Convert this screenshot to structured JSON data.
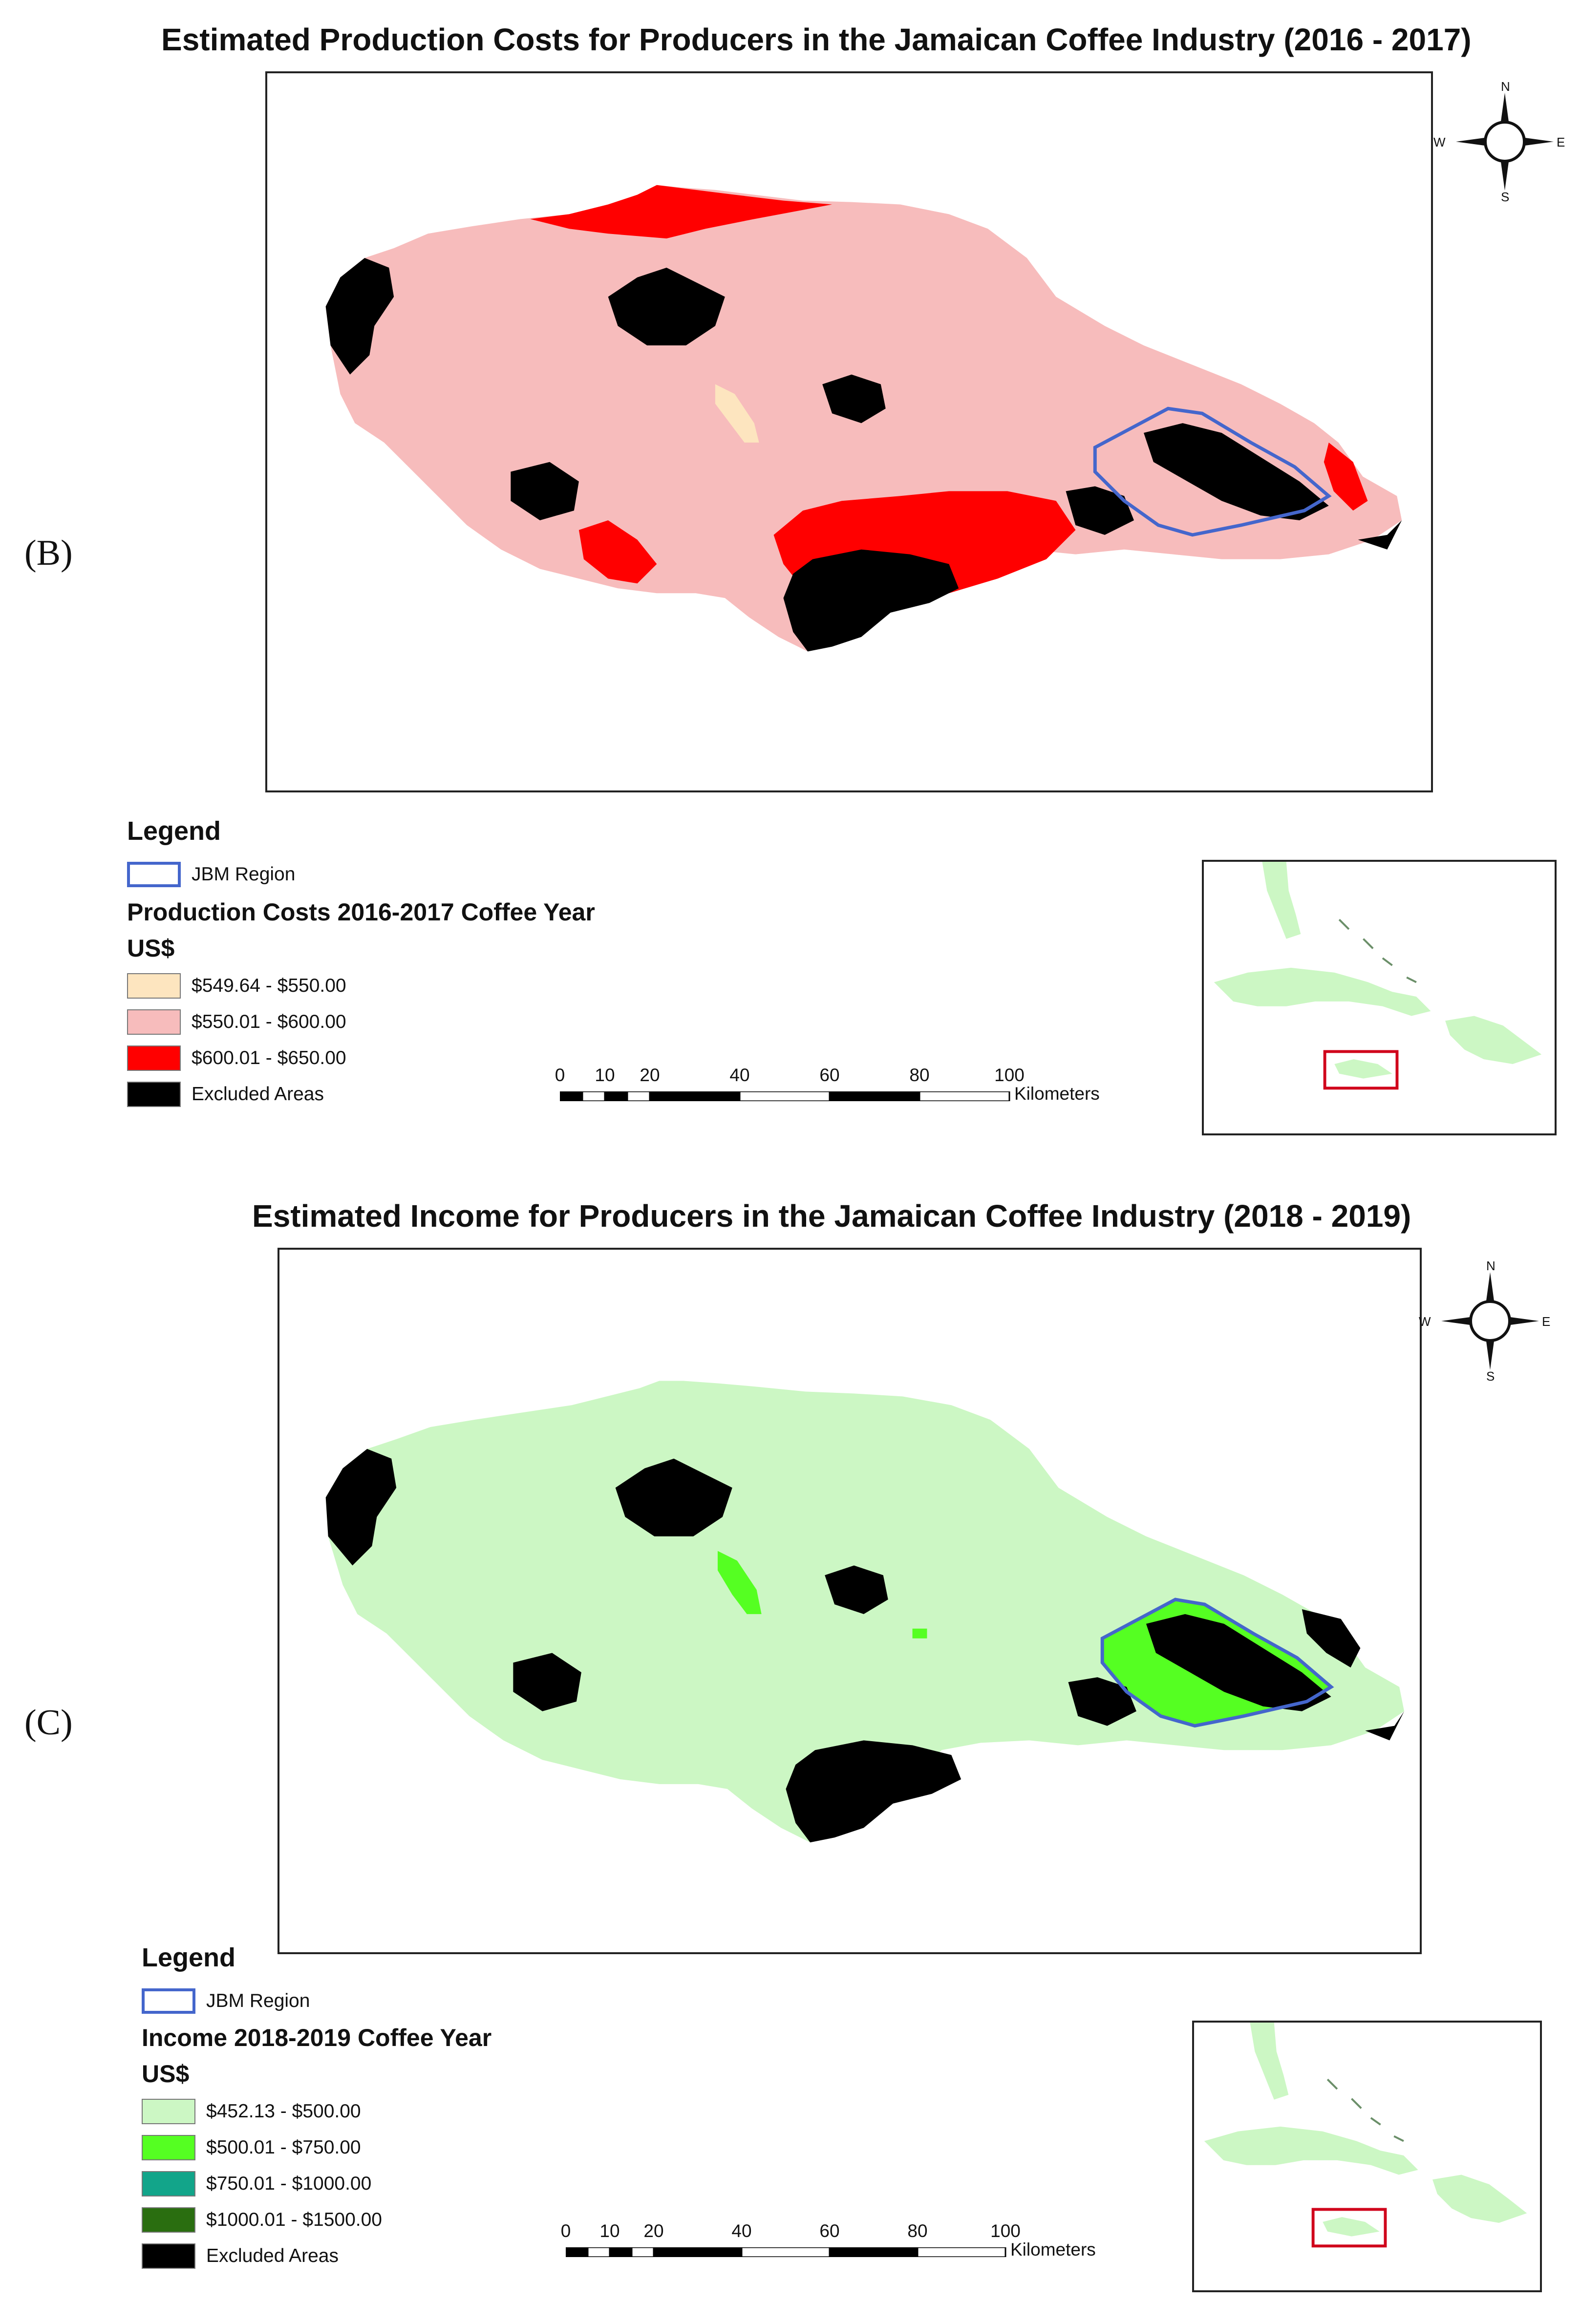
{
  "panel_b": {
    "label": "(B)",
    "title": "Estimated Production Costs for Producers in the Jamaican Coffee Industry (2016 - 2017)",
    "legend": {
      "title": "Legend",
      "region_label": "JBM Region",
      "heading": "Production Costs 2016-2017 Coffee Year",
      "unit": "US$",
      "classes": [
        {
          "label": "$549.64 - $550.00",
          "color": "#fde5bf"
        },
        {
          "label": "$550.01 - $600.00",
          "color": "#f7bcbc"
        },
        {
          "label": "$600.01 - $650.00",
          "color": "#ff0000"
        },
        {
          "label": "Excluded Areas",
          "color": "#000000"
        }
      ]
    },
    "region_color": "#4466cc",
    "base_color": "#f7bcbc",
    "high_color": "#ff0000",
    "low_color": "#fde5bf"
  },
  "panel_c": {
    "label": "(C)",
    "title": "Estimated Income for Producers in the Jamaican Coffee Industry (2018 - 2019)",
    "legend": {
      "title": "Legend",
      "region_label": "JBM Region",
      "heading": "Income 2018-2019 Coffee Year",
      "unit": "US$",
      "classes": [
        {
          "label": "$452.13 - $500.00",
          "color": "#ccf7c4"
        },
        {
          "label": "$500.01 - $750.00",
          "color": "#55ff22"
        },
        {
          "label": "$750.01 - $1000.00",
          "color": "#12a58a"
        },
        {
          "label": "$1000.01 - $1500.00",
          "color": "#2a6e10"
        },
        {
          "label": "Excluded Areas",
          "color": "#000000"
        }
      ]
    },
    "region_color": "#4466cc",
    "base_color": "#ccf7c4",
    "high_color": "#55ff22"
  },
  "scale": {
    "ticks": [
      "0",
      "10",
      "20",
      "40",
      "60",
      "80",
      "100"
    ],
    "unit": "Kilometers"
  },
  "compass": {
    "n": "N",
    "s": "S",
    "e": "E",
    "w": "W"
  },
  "inset": {
    "land_color": "#ccf7c4",
    "highlight_color": "#d0021b"
  }
}
